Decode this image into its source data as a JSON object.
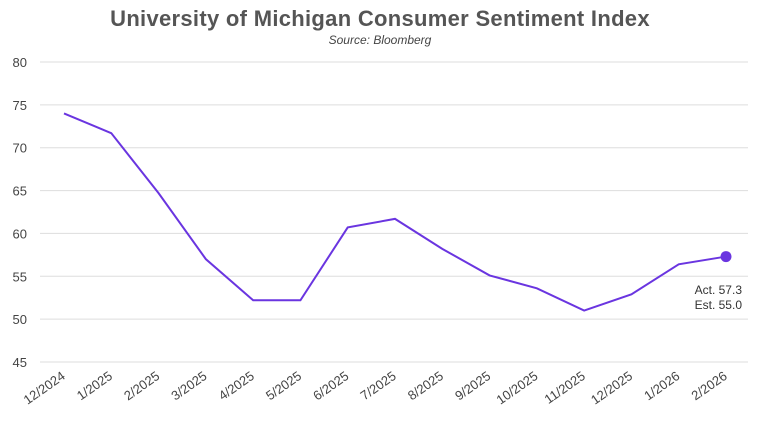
{
  "chart_data": {
    "type": "line",
    "title": "University of Michigan Consumer Sentiment Index",
    "subtitle": "Source: Bloomberg",
    "xlabel": "",
    "ylabel": "",
    "ylim": [
      45,
      80
    ],
    "yticks": [
      45,
      50,
      55,
      60,
      65,
      70,
      75,
      80
    ],
    "grid": true,
    "categories": [
      "12/2024",
      "1/2025",
      "2/2025",
      "3/2025",
      "4/2025",
      "5/2025",
      "6/2025",
      "7/2025",
      "8/2025",
      "9/2025",
      "10/2025",
      "11/2025",
      "12/2025",
      "1/2026",
      "2/2026"
    ],
    "series": [
      {
        "name": "Consumer Sentiment",
        "color": "#6a35e0",
        "values": [
          74.0,
          71.7,
          64.7,
          57.0,
          52.2,
          52.2,
          60.7,
          61.7,
          58.2,
          55.1,
          53.6,
          51.0,
          52.9,
          56.4,
          57.3
        ]
      }
    ],
    "annotation": {
      "line1": "Act. 57.3",
      "line2": "Est. 55.0"
    }
  }
}
